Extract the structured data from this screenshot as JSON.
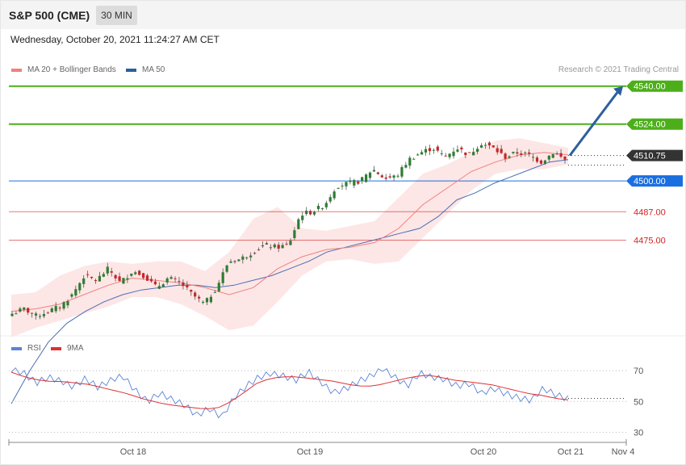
{
  "header": {
    "title": "S&P 500 (CME)",
    "timeframe": "30 MIN"
  },
  "datetime": "Wednesday, October 20, 2021 11:24:27 AM CET",
  "legend": [
    {
      "label": "MA 20 + Bollinger Bands",
      "color": "#f08080"
    },
    {
      "label": "MA 50",
      "color": "#2c5f9e"
    }
  ],
  "credit": "Research © 2021 Trading Central",
  "chart_data": [
    {
      "type": "candlestick",
      "ylim": [
        4436,
        4544
      ],
      "levels": [
        {
          "value": 4540.0,
          "label": "4540.00",
          "color": "#4caf1a",
          "style": "badge"
        },
        {
          "value": 4524.0,
          "label": "4524.00",
          "color": "#4caf1a",
          "style": "badge"
        },
        {
          "value": 4510.75,
          "label": "4510.75",
          "color": "#333333",
          "style": "badge-dotted"
        },
        {
          "value": 4500.0,
          "label": "4500.00",
          "color": "#1a6fe0",
          "style": "badge"
        },
        {
          "value": 4487.0,
          "label": "4487.00",
          "color": "#d22222",
          "style": "text"
        },
        {
          "value": 4475.0,
          "label": "4475.00",
          "color": "#d22222",
          "style": "text"
        }
      ],
      "price_path": [
        4444,
        4446,
        4443,
        4445,
        4447,
        4452,
        4460,
        4458,
        4463,
        4457,
        4462,
        4460,
        4455,
        4459,
        4457,
        4452,
        4448,
        4455,
        4466,
        4467,
        4470,
        4473,
        4472,
        4473,
        4486,
        4487,
        4490,
        4498,
        4499,
        4500,
        4505,
        4501,
        4502,
        4509,
        4512,
        4514,
        4510,
        4514,
        4511,
        4516,
        4514,
        4510,
        4512,
        4511,
        4508,
        4512,
        4509
      ],
      "ma50_path": [
        4406,
        4420,
        4432,
        4440,
        4445,
        4449,
        4452,
        4454,
        4455,
        4456,
        4456,
        4455,
        4456,
        4458,
        4460,
        4463,
        4466,
        4470,
        4472,
        4474,
        4476,
        4478,
        4480,
        4485,
        4492,
        4495,
        4499,
        4502,
        4505,
        4508,
        4509
      ],
      "ma20_path": [
        4445,
        4446,
        4448,
        4452,
        4456,
        4459,
        4458,
        4457,
        4455,
        4452,
        4455,
        4463,
        4468,
        4471,
        4472,
        4474,
        4480,
        4490,
        4497,
        4504,
        4508,
        4511,
        4512,
        4511
      ],
      "bb_upper_path": [
        4452,
        4453,
        4460,
        4464,
        4466,
        4465,
        4466,
        4466,
        4462,
        4470,
        4484,
        4489,
        4480,
        4479,
        4481,
        4483,
        4493,
        4503,
        4507,
        4512,
        4517,
        4518,
        4516,
        4514
      ],
      "bb_lower_path": [
        4434,
        4438,
        4441,
        4444,
        4447,
        4451,
        4451,
        4448,
        4443,
        4437,
        4439,
        4449,
        4460,
        4466,
        4467,
        4465,
        4466,
        4476,
        4486,
        4496,
        4503,
        4505,
        4505,
        4507
      ],
      "forecast_arrow": {
        "from": 4510.75,
        "to": 4540
      }
    },
    {
      "type": "line",
      "series": [
        {
          "name": "RSI",
          "color": "#5b84d6"
        },
        {
          "name": "9MA",
          "color": "#e03030"
        }
      ],
      "ylim": [
        25,
        80
      ],
      "yticks": [
        "70",
        "50",
        "30"
      ],
      "rsi_path": [
        70,
        68,
        62,
        66,
        64,
        60,
        65,
        59,
        63,
        66,
        57,
        50,
        56,
        52,
        48,
        41,
        45,
        39,
        52,
        60,
        66,
        69,
        67,
        64,
        69,
        62,
        55,
        58,
        63,
        67,
        72,
        66,
        60,
        68,
        65,
        64,
        60,
        62,
        56,
        59,
        55,
        52,
        50,
        58,
        54,
        52
      ],
      "ma9_path": [
        69,
        66,
        64,
        63,
        63,
        62,
        61,
        59,
        57,
        55,
        52,
        50,
        48,
        47,
        46,
        45,
        46,
        50,
        56,
        62,
        65,
        66,
        66,
        65,
        64,
        63,
        61,
        60,
        60,
        62,
        64,
        66,
        67,
        66,
        64,
        63,
        62,
        61,
        59,
        57,
        55,
        54,
        52,
        51
      ]
    }
  ],
  "x_axis": {
    "ticks": [
      "Oct 18",
      "Oct 19",
      "Oct 20",
      "Oct 21",
      "Nov 4"
    ]
  }
}
